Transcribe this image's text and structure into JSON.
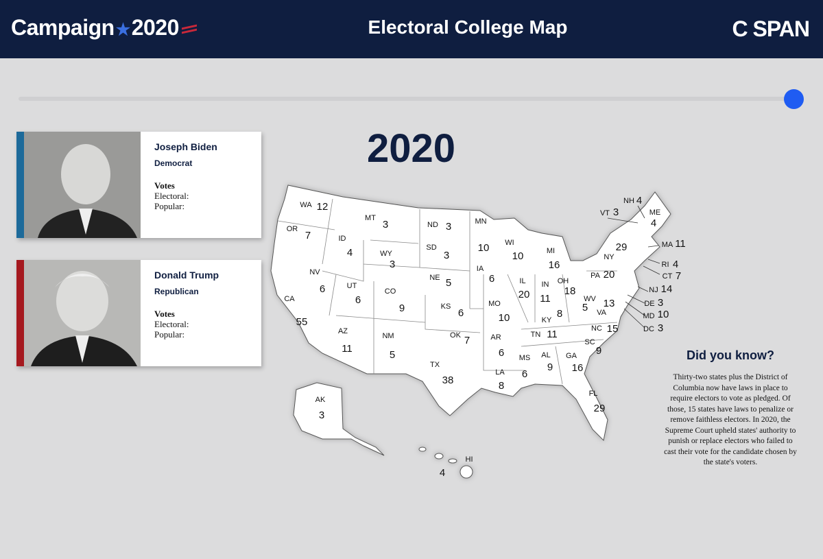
{
  "header": {
    "logo": {
      "word": "Campaign",
      "year": "2020"
    },
    "title": "Electoral College Map",
    "brand": "C SPAN"
  },
  "year": "2020",
  "candidates": [
    {
      "name": "Joseph Biden",
      "party": "Democrat",
      "votes_heading": "Votes",
      "electoral_label": "Electoral:",
      "popular_label": "Popular:"
    },
    {
      "name": "Donald Trump",
      "party": "Republican",
      "votes_heading": "Votes",
      "electoral_label": "Electoral:",
      "popular_label": "Popular:"
    }
  ],
  "map": {
    "states": [
      {
        "abbr": "WA",
        "votes": 12
      },
      {
        "abbr": "OR",
        "votes": 7
      },
      {
        "abbr": "ID",
        "votes": 4
      },
      {
        "abbr": "MT",
        "votes": 3
      },
      {
        "abbr": "ND",
        "votes": 3
      },
      {
        "abbr": "SD",
        "votes": 3
      },
      {
        "abbr": "WY",
        "votes": 3
      },
      {
        "abbr": "NE",
        "votes": 5
      },
      {
        "abbr": "MN",
        "votes": 10
      },
      {
        "abbr": "IA",
        "votes": 6
      },
      {
        "abbr": "WI",
        "votes": 10
      },
      {
        "abbr": "MI",
        "votes": 16
      },
      {
        "abbr": "NV",
        "votes": 6
      },
      {
        "abbr": "UT",
        "votes": 6
      },
      {
        "abbr": "CO",
        "votes": 9
      },
      {
        "abbr": "KS",
        "votes": 6
      },
      {
        "abbr": "MO",
        "votes": 10
      },
      {
        "abbr": "IL",
        "votes": 20
      },
      {
        "abbr": "IN",
        "votes": 11
      },
      {
        "abbr": "OH",
        "votes": 18
      },
      {
        "abbr": "PA",
        "votes": 20
      },
      {
        "abbr": "NY",
        "votes": 29
      },
      {
        "abbr": "CA",
        "votes": 55
      },
      {
        "abbr": "AZ",
        "votes": 11
      },
      {
        "abbr": "NM",
        "votes": 5
      },
      {
        "abbr": "OK",
        "votes": 7
      },
      {
        "abbr": "TX",
        "votes": 38
      },
      {
        "abbr": "AR",
        "votes": 6
      },
      {
        "abbr": "LA",
        "votes": 8
      },
      {
        "abbr": "MS",
        "votes": 6
      },
      {
        "abbr": "AL",
        "votes": 9
      },
      {
        "abbr": "GA",
        "votes": 16
      },
      {
        "abbr": "TN",
        "votes": 11
      },
      {
        "abbr": "KY",
        "votes": 8
      },
      {
        "abbr": "WV",
        "votes": 5
      },
      {
        "abbr": "VA",
        "votes": 13
      },
      {
        "abbr": "NC",
        "votes": 15
      },
      {
        "abbr": "SC",
        "votes": 9
      },
      {
        "abbr": "FL",
        "votes": 29
      },
      {
        "abbr": "AK",
        "votes": 3
      },
      {
        "abbr": "HI",
        "votes": 4
      },
      {
        "abbr": "VT",
        "votes": 3
      },
      {
        "abbr": "NH",
        "votes": 4
      },
      {
        "abbr": "ME",
        "votes": 4
      },
      {
        "abbr": "MA",
        "votes": 11
      },
      {
        "abbr": "RI",
        "votes": 4
      },
      {
        "abbr": "CT",
        "votes": 7
      },
      {
        "abbr": "NJ",
        "votes": 14
      },
      {
        "abbr": "DE",
        "votes": 3
      },
      {
        "abbr": "MD",
        "votes": 10
      },
      {
        "abbr": "DC",
        "votes": 3
      }
    ]
  },
  "did_you_know": {
    "title": "Did you know?",
    "text": "Thirty-two states plus the District of Columbia now have laws in place to require electors to vote as pledged. Of those, 15 states have laws to penalize or remove faithless electors. In 2020, the Supreme Court upheld states' authority to punish or replace electors who failed to cast their vote for the candidate chosen by the state's voters."
  }
}
